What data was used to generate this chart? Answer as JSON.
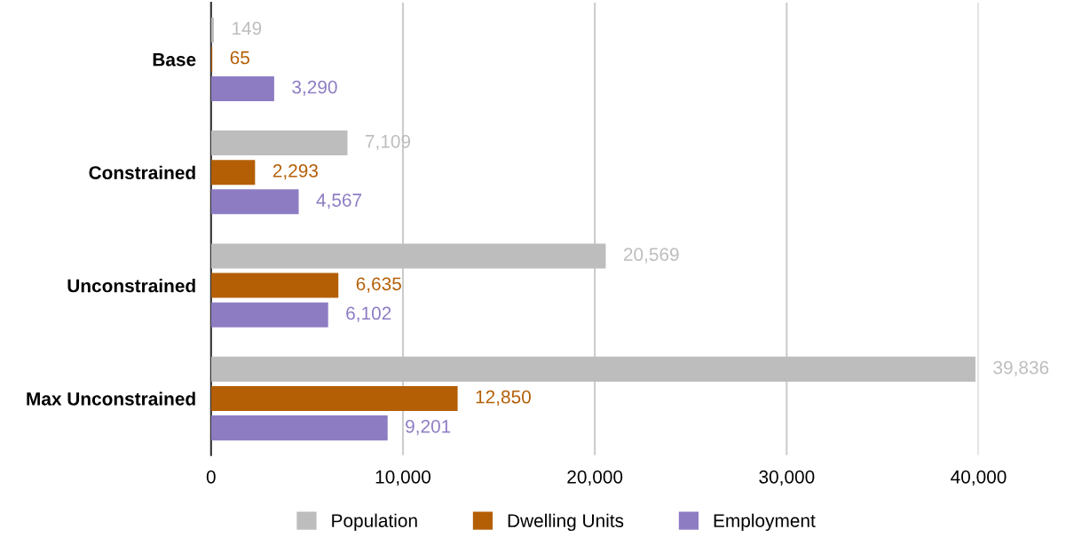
{
  "chart_data": {
    "type": "bar",
    "orientation": "horizontal",
    "categories": [
      "Base",
      "Constrained",
      "Unconstrained",
      "Max Unconstrained"
    ],
    "series": [
      {
        "name": "Population",
        "color": "#bdbdbd",
        "values": [
          149,
          7109,
          20569,
          39836
        ],
        "value_labels": [
          "149",
          "7,109",
          "20,569",
          "39,836"
        ]
      },
      {
        "name": "Dwelling Units",
        "color": "#b45f06",
        "values": [
          65,
          2293,
          6635,
          12850
        ],
        "value_labels": [
          "65",
          "2,293",
          "6,635",
          "12,850"
        ]
      },
      {
        "name": "Employment",
        "color": "#8e7cc3",
        "values": [
          3290,
          4567,
          6102,
          9201
        ],
        "value_labels": [
          "3,290",
          "4,567",
          "6,102",
          "9,201"
        ]
      }
    ],
    "xlim": [
      0,
      40000
    ],
    "xticks": [
      0,
      {
        "value": 10000,
        "label": "10,000"
      },
      {
        "value": 20000,
        "label": "20,000"
      },
      {
        "value": 30000,
        "label": "30,000"
      },
      {
        "value": 40000,
        "label": "40,000"
      }
    ],
    "grid": "x",
    "legend": "bottom"
  }
}
